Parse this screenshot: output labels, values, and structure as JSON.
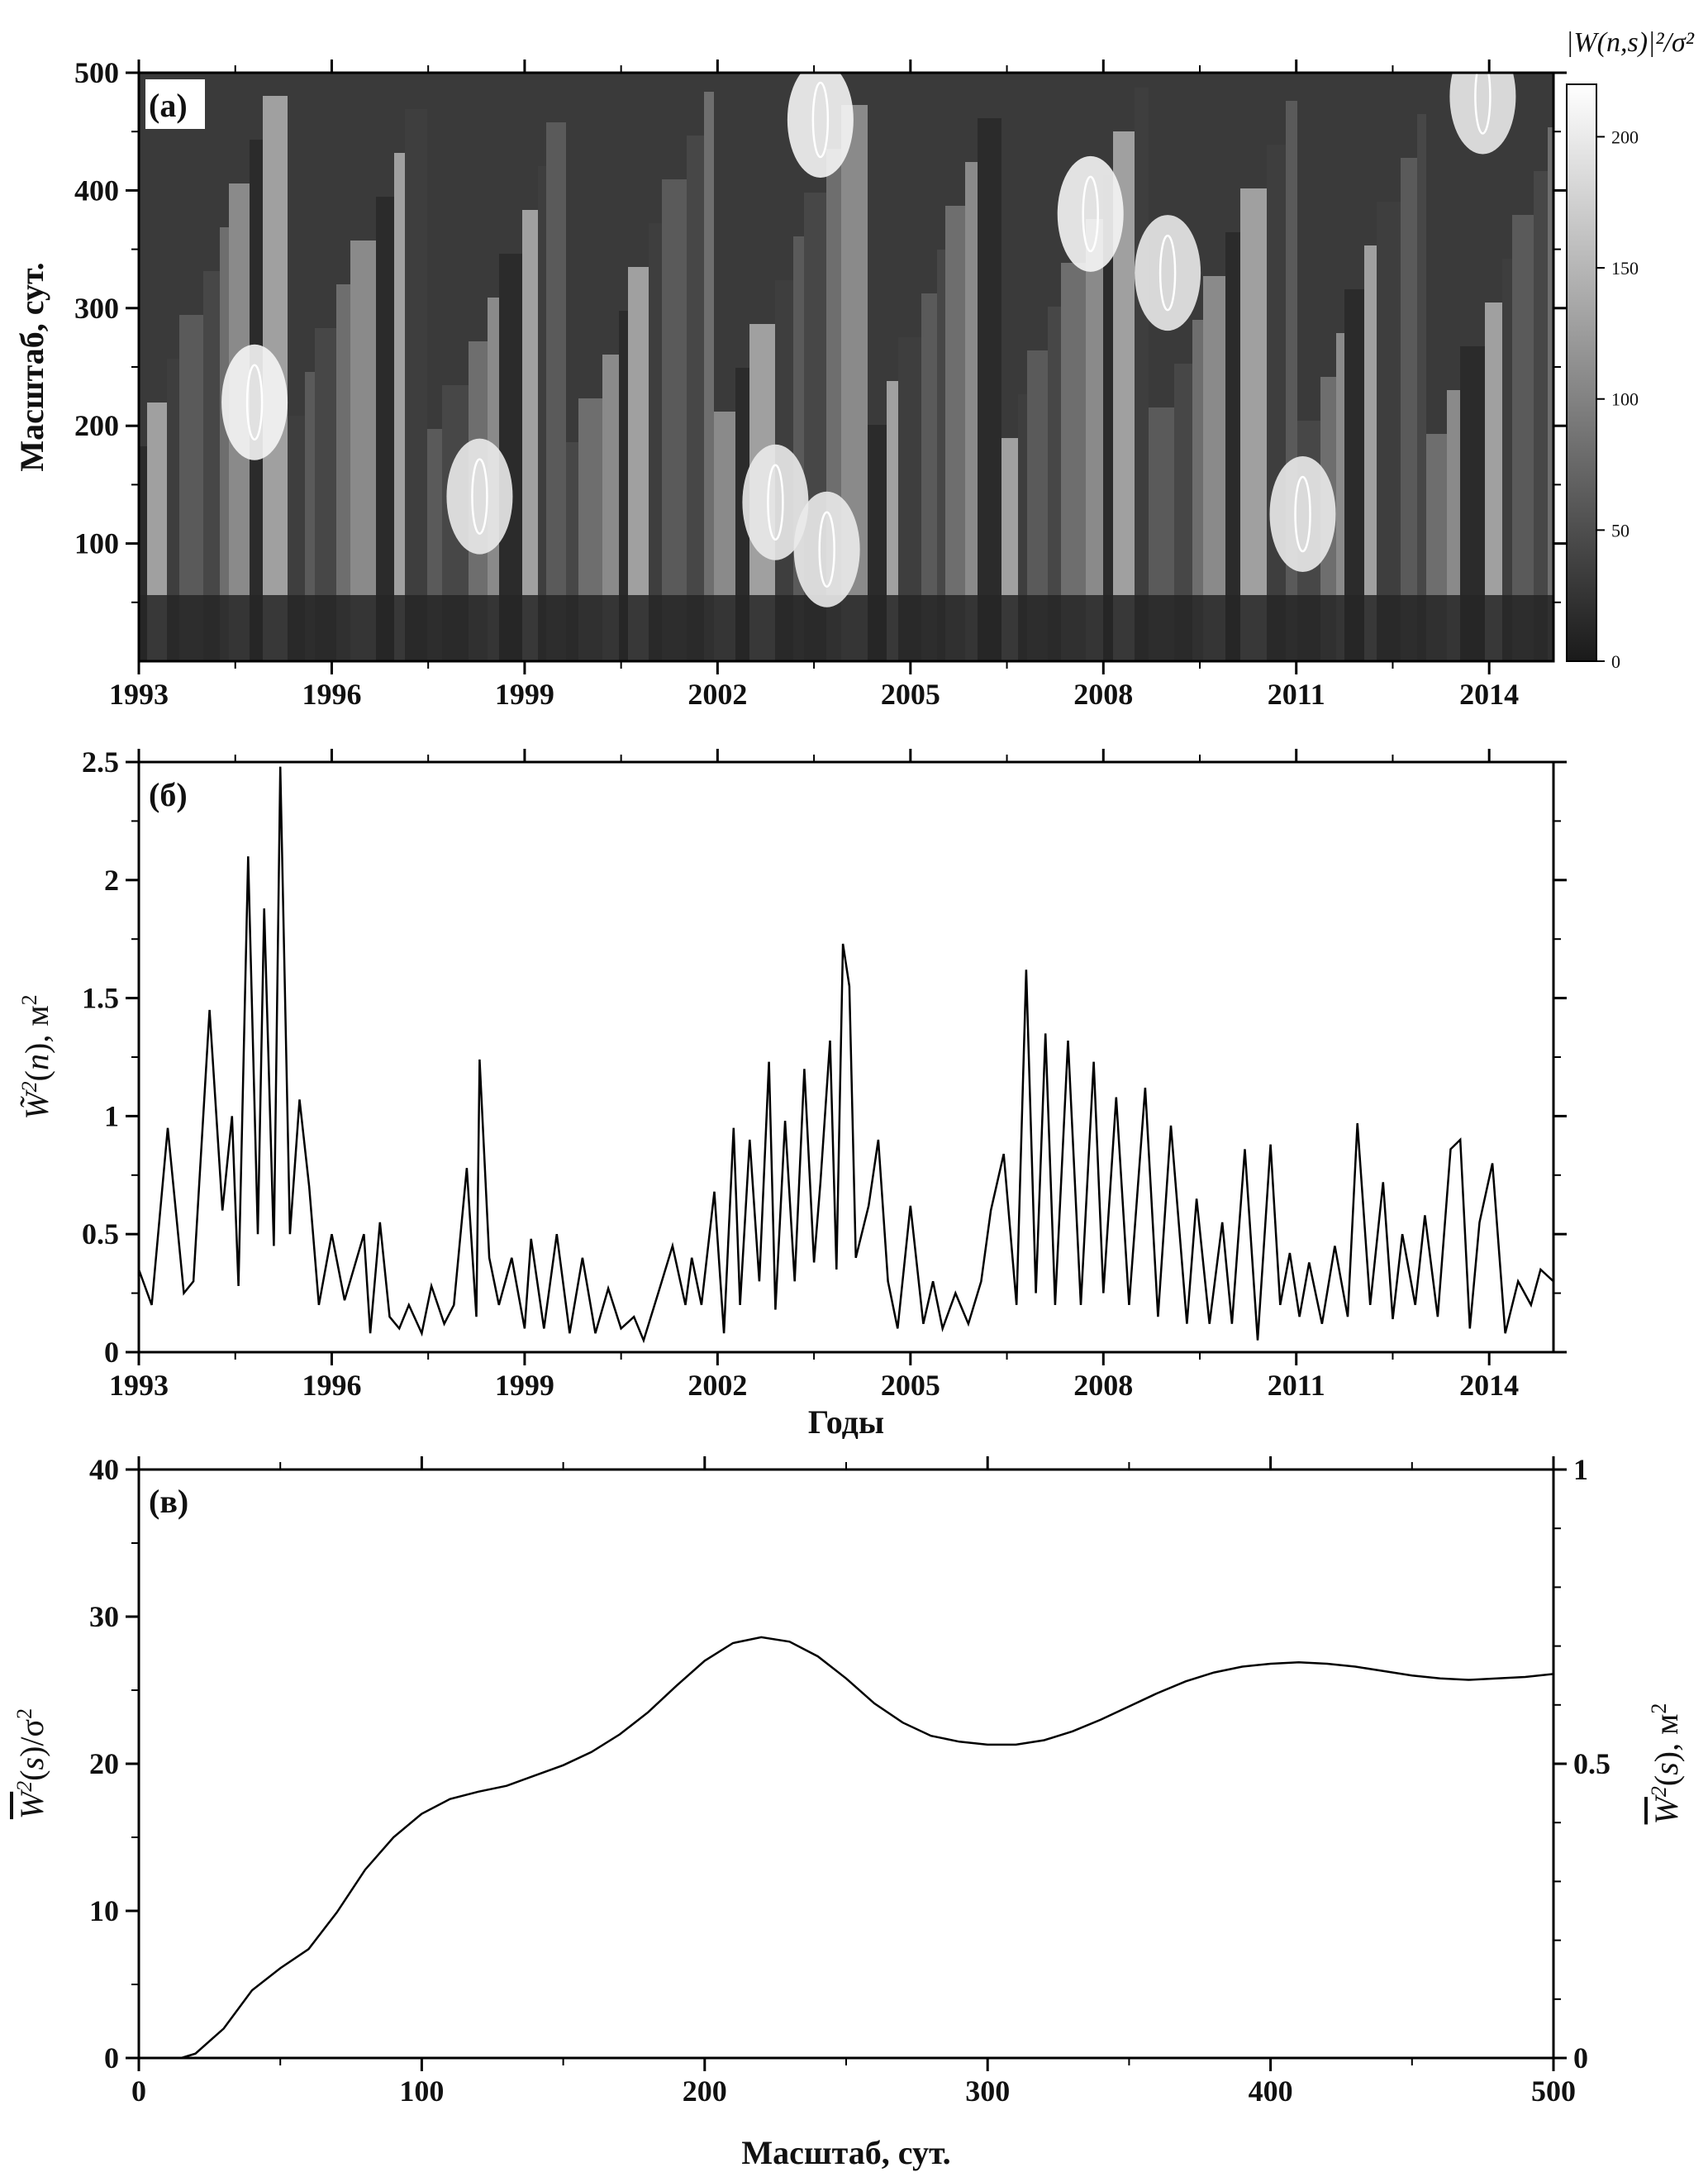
{
  "chart_data": [
    {
      "id": "a",
      "type": "heatmap",
      "panel_label": "(а)",
      "ylabel": "Масштаб, сут.",
      "colorbar_label": "|W(n,s)|²/σ²",
      "colorbar_ticks": [
        "0",
        "50",
        "100",
        "150",
        "200"
      ],
      "colorbar_range": [
        0,
        220
      ],
      "x_ticks": [
        "1993",
        "1996",
        "1999",
        "2002",
        "2005",
        "2008",
        "2011",
        "2014"
      ],
      "y_ticks": [
        "100",
        "200",
        "300",
        "400",
        "500"
      ],
      "xlim": [
        1993,
        2015
      ],
      "ylim": [
        0,
        500
      ],
      "colormap": [
        "#1a1a1a",
        "#ffffff"
      ],
      "regions": [
        {
          "year": 1994.8,
          "scale": 220,
          "power": 210
        },
        {
          "year": 1998.3,
          "scale": 140,
          "power": 200
        },
        {
          "year": 2002.9,
          "scale": 135,
          "power": 200
        },
        {
          "year": 2003.7,
          "scale": 95,
          "power": 200
        },
        {
          "year": 2003.6,
          "scale": 460,
          "power": 210
        },
        {
          "year": 2007.8,
          "scale": 380,
          "power": 210
        },
        {
          "year": 2009.0,
          "scale": 330,
          "power": 200
        },
        {
          "year": 2011.1,
          "scale": 125,
          "power": 200
        },
        {
          "year": 2013.9,
          "scale": 480,
          "power": 200
        }
      ]
    },
    {
      "id": "b",
      "type": "line",
      "panel_label": "(б)",
      "ylabel_parts": [
        "W̃",
        "2",
        "(",
        "n",
        "), м",
        "2"
      ],
      "xlabel": "Годы",
      "x_ticks": [
        "1993",
        "1996",
        "1999",
        "2002",
        "2005",
        "2008",
        "2011",
        "2014"
      ],
      "y_ticks": [
        "0",
        "0.5",
        "1",
        "1.5",
        "2",
        "2.5"
      ],
      "xlim": [
        1993,
        2015
      ],
      "ylim": [
        0,
        2.5
      ],
      "series": [
        {
          "x": [
            1993.0,
            1993.2,
            1993.45,
            1993.7,
            1993.85,
            1994.1,
            1994.3,
            1994.45,
            1994.55,
            1994.7,
            1994.85,
            1994.95,
            1995.1,
            1995.2,
            1995.35,
            1995.5,
            1995.65,
            1995.8,
            1996.0,
            1996.2,
            1996.5,
            1996.6,
            1996.75,
            1996.9,
            1997.05,
            1997.2,
            1997.4,
            1997.55,
            1997.75,
            1997.9,
            1998.1,
            1998.25,
            1998.3,
            1998.45,
            1998.6,
            1998.8,
            1999.0,
            1999.1,
            1999.3,
            1999.5,
            1999.7,
            1999.9,
            2000.1,
            2000.3,
            2000.5,
            2000.7,
            2000.85,
            2001.1,
            2001.3,
            2001.5,
            2001.6,
            2001.75,
            2001.95,
            2002.1,
            2002.25,
            2002.35,
            2002.5,
            2002.65,
            2002.8,
            2002.9,
            2003.05,
            2003.2,
            2003.35,
            2003.5,
            2003.6,
            2003.75,
            2003.85,
            2003.95,
            2004.05,
            2004.15,
            2004.35,
            2004.5,
            2004.65,
            2004.8,
            2005.0,
            2005.2,
            2005.35,
            2005.5,
            2005.7,
            2005.9,
            2006.1,
            2006.25,
            2006.45,
            2006.65,
            2006.8,
            2006.95,
            2007.1,
            2007.25,
            2007.45,
            2007.65,
            2007.85,
            2008.0,
            2008.2,
            2008.4,
            2008.65,
            2008.85,
            2009.05,
            2009.3,
            2009.45,
            2009.65,
            2009.85,
            2010.0,
            2010.2,
            2010.4,
            2010.6,
            2010.75,
            2010.9,
            2011.05,
            2011.2,
            2011.4,
            2011.6,
            2011.8,
            2011.95,
            2012.15,
            2012.35,
            2012.5,
            2012.65,
            2012.85,
            2013.0,
            2013.2,
            2013.4,
            2013.55,
            2013.7,
            2013.85,
            2014.05,
            2014.25,
            2014.45,
            2014.65,
            2014.8,
            2015.0
          ],
          "y": [
            0.35,
            0.2,
            0.95,
            0.25,
            0.3,
            1.45,
            0.6,
            1.0,
            0.28,
            2.1,
            0.5,
            1.88,
            0.45,
            2.48,
            0.5,
            1.07,
            0.7,
            0.2,
            0.5,
            0.22,
            0.5,
            0.08,
            0.55,
            0.15,
            0.1,
            0.2,
            0.08,
            0.28,
            0.12,
            0.2,
            0.78,
            0.15,
            1.24,
            0.4,
            0.2,
            0.4,
            0.1,
            0.48,
            0.1,
            0.5,
            0.08,
            0.4,
            0.08,
            0.27,
            0.1,
            0.15,
            0.05,
            0.27,
            0.45,
            0.2,
            0.4,
            0.2,
            0.68,
            0.08,
            0.95,
            0.2,
            0.9,
            0.3,
            1.23,
            0.18,
            0.98,
            0.3,
            1.2,
            0.38,
            0.72,
            1.32,
            0.35,
            1.73,
            1.55,
            0.4,
            0.62,
            0.9,
            0.3,
            0.1,
            0.62,
            0.12,
            0.3,
            0.1,
            0.25,
            0.12,
            0.3,
            0.6,
            0.84,
            0.2,
            1.62,
            0.25,
            1.35,
            0.2,
            1.32,
            0.2,
            1.23,
            0.25,
            1.08,
            0.2,
            1.12,
            0.15,
            0.96,
            0.12,
            0.65,
            0.12,
            0.55,
            0.12,
            0.86,
            0.05,
            0.88,
            0.2,
            0.42,
            0.15,
            0.38,
            0.12,
            0.45,
            0.15,
            0.97,
            0.2,
            0.72,
            0.14,
            0.5,
            0.2,
            0.58,
            0.15,
            0.86,
            0.9,
            0.1,
            0.55,
            0.8,
            0.08,
            0.3,
            0.2,
            0.35,
            0.3
          ]
        }
      ]
    },
    {
      "id": "c",
      "type": "line",
      "panel_label": "(в)",
      "xlabel": "Масштаб, сут.",
      "ylabel_left_parts": [
        "W",
        "2",
        "(",
        "s",
        ")/σ",
        "2"
      ],
      "ylabel_right_parts": [
        "W",
        "2",
        "(",
        "s",
        "), м",
        "2"
      ],
      "x_ticks": [
        "0",
        "100",
        "200",
        "300",
        "400",
        "500"
      ],
      "y_ticks_left": [
        "0",
        "10",
        "20",
        "30",
        "40"
      ],
      "y_ticks_right": [
        "0",
        "0.5",
        "1"
      ],
      "xlim": [
        0,
        500
      ],
      "ylim": [
        0,
        40
      ],
      "ylim_right": [
        0,
        1
      ],
      "series": [
        {
          "x": [
            15,
            20,
            30,
            40,
            50,
            60,
            70,
            80,
            90,
            100,
            110,
            120,
            130,
            140,
            150,
            160,
            170,
            180,
            190,
            200,
            210,
            220,
            230,
            240,
            250,
            260,
            270,
            280,
            290,
            300,
            310,
            320,
            330,
            340,
            350,
            360,
            370,
            380,
            390,
            400,
            410,
            420,
            430,
            440,
            450,
            460,
            470,
            480,
            490,
            500
          ],
          "y": [
            0,
            0.3,
            2.0,
            4.6,
            6.1,
            7.4,
            9.9,
            12.8,
            15.0,
            16.6,
            17.6,
            18.1,
            18.5,
            19.2,
            19.9,
            20.8,
            22.0,
            23.5,
            25.3,
            27.0,
            28.2,
            28.6,
            28.3,
            27.3,
            25.8,
            24.1,
            22.8,
            21.9,
            21.5,
            21.3,
            21.3,
            21.6,
            22.2,
            23.0,
            23.9,
            24.8,
            25.6,
            26.2,
            26.6,
            26.8,
            26.9,
            26.8,
            26.6,
            26.3,
            26.0,
            25.8,
            25.7,
            25.8,
            25.9,
            26.1
          ]
        }
      ]
    }
  ]
}
